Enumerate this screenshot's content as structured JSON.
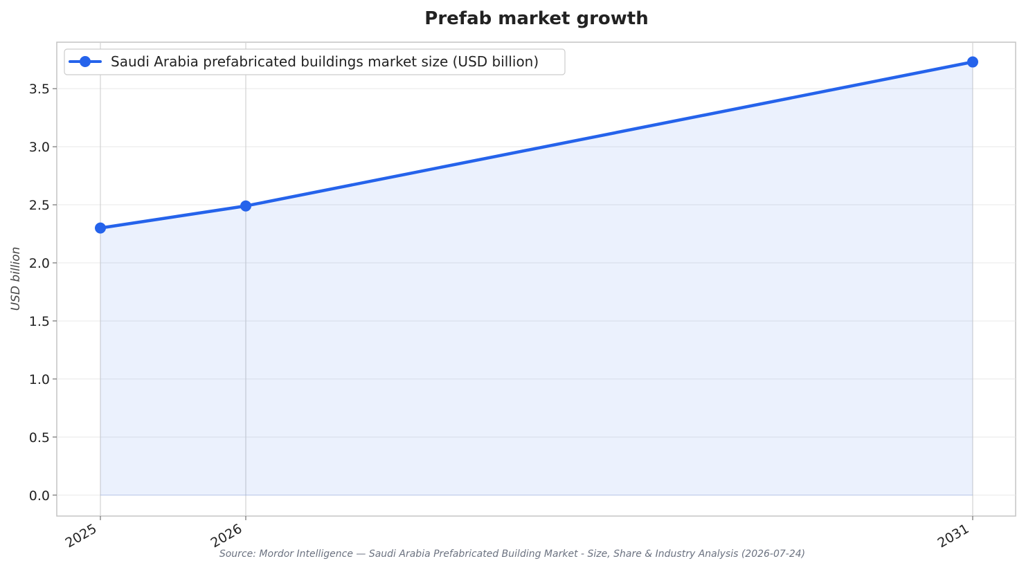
{
  "chart_data": {
    "type": "line",
    "title": "Prefab market growth",
    "xlabel": "",
    "ylabel": "USD billion",
    "categories": [
      "2025",
      "2026",
      "2031"
    ],
    "x": [
      2025,
      2026,
      2031
    ],
    "series": [
      {
        "name": "Saudi Arabia prefabricated buildings market size (USD billion)",
        "values": [
          2.3,
          2.49,
          3.73
        ],
        "color": "#2563eb",
        "fill": "#2563eb"
      }
    ],
    "ylim": [
      -0.18,
      3.9
    ],
    "yticks": [
      0.0,
      0.5,
      1.0,
      1.5,
      2.0,
      2.5,
      3.0,
      3.5
    ],
    "ytick_labels": [
      "0.0",
      "0.5",
      "1.0",
      "1.5",
      "2.0",
      "2.5",
      "3.0",
      "3.5"
    ],
    "grid": true,
    "legend": "top-left",
    "area_fill": true,
    "source": "Source: Mordor Intelligence — Saudi Arabia Prefabricated Building Market - Size, Share & Industry Analysis (2026-07-24)"
  }
}
